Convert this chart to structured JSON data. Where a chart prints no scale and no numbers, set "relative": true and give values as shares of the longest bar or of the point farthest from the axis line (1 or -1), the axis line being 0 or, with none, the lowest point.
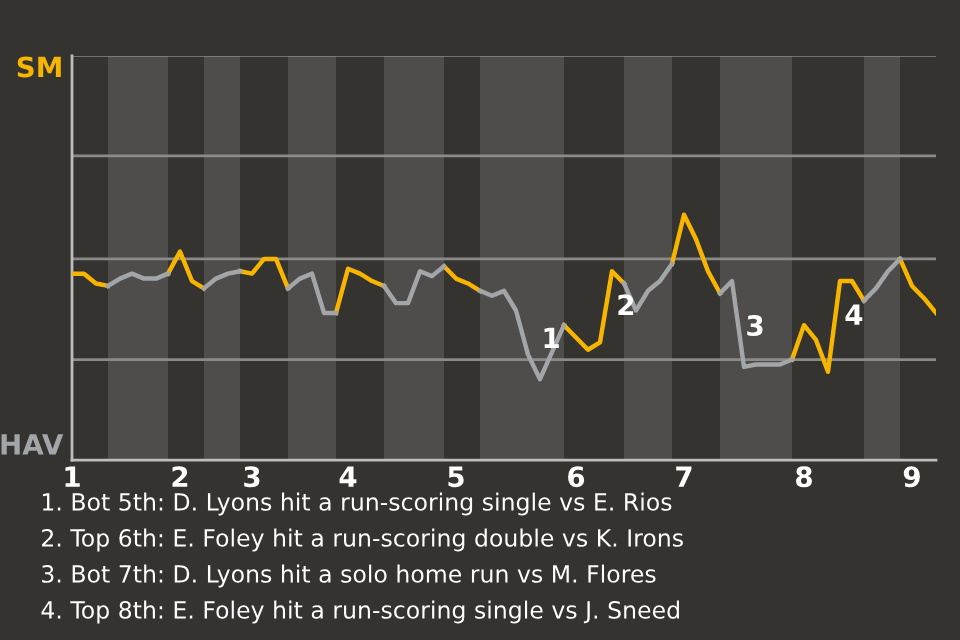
{
  "chart_data": {
    "type": "line",
    "relative": true,
    "categories": [
      "1",
      null,
      null,
      null,
      null,
      null,
      null,
      null,
      null,
      "2",
      null,
      null,
      null,
      null,
      null,
      "3",
      null,
      null,
      null,
      null,
      null,
      null,
      null,
      "4",
      null,
      null,
      null,
      null,
      null,
      null,
      null,
      null,
      "5",
      null,
      null,
      null,
      null,
      null,
      null,
      null,
      null,
      null,
      "6",
      null,
      null,
      null,
      null,
      null,
      null,
      null,
      null,
      "7",
      null,
      null,
      null,
      null,
      null,
      null,
      null,
      null,
      null,
      "8",
      null,
      null,
      null,
      null,
      null,
      null,
      null,
      null,
      "9",
      null,
      null
    ],
    "ref_lines": [
      {
        "axis": "y",
        "value": 0.41,
        "color": "#8a8a88"
      },
      {
        "axis": "y",
        "value": 0.82,
        "color": "#8a8a88"
      },
      {
        "axis": "y",
        "value": 1.24,
        "color": "#8a8a88"
      },
      {
        "axis": "y",
        "value": 1.65,
        "color": "#8a8a88"
      }
    ],
    "series": [
      {
        "color": "#f7b500",
        "values": [
          0.76,
          0.76,
          0.72,
          0.71,
          null,
          null,
          null,
          null,
          0.76,
          0.85,
          0.73,
          0.7,
          null,
          null,
          0.77,
          0.76,
          0.82,
          0.82,
          0.7,
          null,
          null,
          null,
          0.6,
          0.78,
          0.76,
          0.73,
          0.71,
          null,
          null,
          null,
          null,
          0.79,
          0.74,
          0.72,
          0.69,
          null,
          null,
          null,
          null,
          null,
          null,
          0.55,
          0.5,
          0.45,
          0.48,
          0.77,
          0.72,
          null,
          null,
          null,
          0.8,
          1,
          0.9,
          0.77,
          0.68,
          null,
          null,
          null,
          null,
          null,
          0.41,
          0.55,
          0.49,
          0.36,
          0.73,
          0.73,
          0.65,
          null,
          null,
          0.82,
          0.71,
          0.66,
          0.6
        ],
        "name": null
      },
      {
        "color": "#a2a6a8",
        "values": [
          null,
          null,
          null,
          0.71,
          0.74,
          0.76,
          0.74,
          0.74,
          0.76,
          null,
          null,
          0.7,
          0.74,
          0.76,
          0.77,
          null,
          null,
          null,
          0.7,
          0.74,
          0.76,
          0.6,
          0.6,
          null,
          null,
          null,
          0.71,
          0.64,
          0.64,
          0.77,
          0.75,
          0.79,
          null,
          null,
          0.69,
          0.67,
          0.69,
          0.61,
          0.43,
          0.33,
          0.44,
          0.55,
          null,
          null,
          null,
          null,
          0.72,
          0.61,
          0.69,
          0.73,
          0.8,
          null,
          null,
          null,
          0.68,
          0.73,
          0.38,
          0.39,
          0.39,
          0.39,
          0.41,
          null,
          null,
          null,
          null,
          null,
          0.65,
          0.7,
          0.77,
          0.82,
          null,
          null,
          null
        ],
        "name": null
      }
    ],
    "annotations": [
      {
        "text": "1",
        "y": 0.33
      },
      {
        "text": "2",
        "y": 0.77
      },
      {
        "text": "3",
        "y": 0.38
      },
      {
        "text": "4",
        "y": 0.73
      },
      "SM",
      "HAV",
      "1. Bot 5th: D. Lyons hit a run-scoring single vs E. Rios",
      "2. Top 6th: E. Foley hit a run-scoring double vs K. Irons",
      "3. Bot 7th: D. Lyons hit a solo home run vs M. Flores",
      "4. Top 8th: E. Foley hit a run-scoring single vs J. Sneed"
    ]
  }
}
